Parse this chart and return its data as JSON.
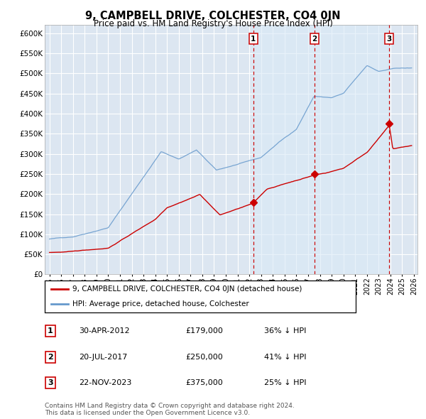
{
  "title": "9, CAMPBELL DRIVE, COLCHESTER, CO4 0JN",
  "subtitle": "Price paid vs. HM Land Registry's House Price Index (HPI)",
  "ylabel_ticks": [
    "£0",
    "£50K",
    "£100K",
    "£150K",
    "£200K",
    "£250K",
    "£300K",
    "£350K",
    "£400K",
    "£450K",
    "£500K",
    "£550K",
    "£600K"
  ],
  "ytick_vals": [
    0,
    50000,
    100000,
    150000,
    200000,
    250000,
    300000,
    350000,
    400000,
    450000,
    500000,
    550000,
    600000
  ],
  "ylim": [
    0,
    620000
  ],
  "xlim_start": 1994.6,
  "xlim_end": 2026.3,
  "background_color": "#ffffff",
  "plot_bg_color": "#dce6f1",
  "shade_color": "#dce9f5",
  "grid_color": "#ffffff",
  "purchases": [
    {
      "date_num": 2012.33,
      "price": 179000,
      "label": "1"
    },
    {
      "date_num": 2017.54,
      "price": 250000,
      "label": "2"
    },
    {
      "date_num": 2023.9,
      "price": 375000,
      "label": "3"
    }
  ],
  "vline_color": "#cc0000",
  "vline_style": "--",
  "purchase_marker_color": "#cc0000",
  "hpi_line_color": "#6699cc",
  "sale_line_color": "#cc0000",
  "legend_entries": [
    "9, CAMPBELL DRIVE, COLCHESTER, CO4 0JN (detached house)",
    "HPI: Average price, detached house, Colchester"
  ],
  "table_rows": [
    {
      "num": "1",
      "date": "30-APR-2012",
      "price": "£179,000",
      "hpi": "36% ↓ HPI"
    },
    {
      "num": "2",
      "date": "20-JUL-2017",
      "price": "£250,000",
      "hpi": "41% ↓ HPI"
    },
    {
      "num": "3",
      "date": "22-NOV-2023",
      "price": "£375,000",
      "hpi": "25% ↓ HPI"
    }
  ],
  "footer": "Contains HM Land Registry data © Crown copyright and database right 2024.\nThis data is licensed under the Open Government Licence v3.0.",
  "xtick_years": [
    1995,
    1996,
    1997,
    1998,
    1999,
    2000,
    2001,
    2002,
    2003,
    2004,
    2005,
    2006,
    2007,
    2008,
    2009,
    2010,
    2011,
    2012,
    2013,
    2014,
    2015,
    2016,
    2017,
    2018,
    2019,
    2020,
    2021,
    2022,
    2023,
    2024,
    2025,
    2026
  ]
}
